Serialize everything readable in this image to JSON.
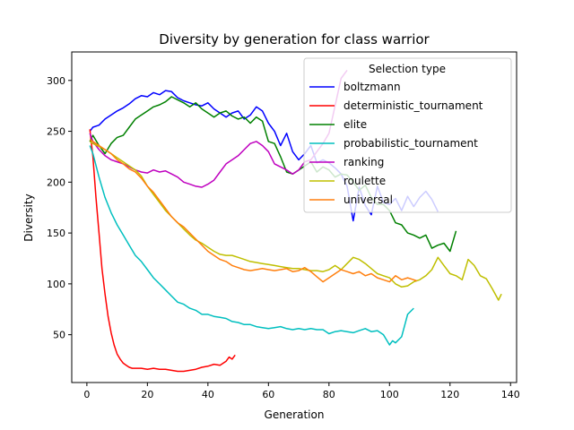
{
  "chart_data": {
    "type": "line",
    "title": "Diversity by generation for class warrior",
    "xlabel": "Generation",
    "ylabel": "Diversity",
    "xlim": [
      -5,
      142
    ],
    "ylim": [
      3,
      328
    ],
    "xticks": [
      0,
      20,
      40,
      60,
      80,
      100,
      120,
      140
    ],
    "yticks": [
      50,
      100,
      150,
      200,
      250,
      300
    ],
    "grid": false,
    "legend": {
      "title": "Selection type",
      "placement": "top-right"
    },
    "series": [
      {
        "name": "boltzmann",
        "color": "#0000ff",
        "x": [
          1,
          2,
          4,
          6,
          8,
          10,
          12,
          14,
          16,
          18,
          20,
          22,
          24,
          26,
          28,
          30,
          32,
          34,
          36,
          38,
          40,
          42,
          44,
          46,
          48,
          50,
          52,
          54,
          56,
          58,
          60,
          62,
          64,
          66,
          68,
          70,
          72,
          74,
          76,
          78,
          80,
          82,
          84,
          86,
          88,
          90,
          92,
          94,
          96,
          98,
          100,
          102,
          104,
          106,
          108,
          110,
          112,
          114,
          116
        ],
        "values": [
          250,
          254,
          256,
          262,
          266,
          270,
          273,
          277,
          282,
          285,
          284,
          288,
          286,
          290,
          289,
          283,
          280,
          278,
          276,
          275,
          278,
          272,
          268,
          264,
          268,
          270,
          262,
          266,
          274,
          270,
          258,
          250,
          236,
          248,
          230,
          222,
          228,
          236,
          219,
          222,
          219,
          214,
          208,
          196,
          162,
          195,
          177,
          168,
          196,
          180,
          178,
          184,
          172,
          186,
          176,
          185,
          191,
          183,
          171
        ]
      },
      {
        "name": "deterministic_tournament",
        "color": "#ff0000",
        "x": [
          1,
          2,
          3,
          4,
          5,
          6,
          7,
          8,
          9,
          10,
          11,
          12,
          13,
          14,
          15,
          16,
          18,
          20,
          22,
          24,
          26,
          28,
          30,
          32,
          34,
          36,
          38,
          40,
          42,
          44,
          46,
          47,
          48,
          49
        ],
        "values": [
          252,
          225,
          185,
          150,
          115,
          90,
          68,
          52,
          40,
          31,
          26,
          22,
          20,
          18,
          17,
          17,
          17,
          16,
          17,
          16,
          16,
          15,
          14,
          14,
          15,
          16,
          18,
          19,
          21,
          20,
          24,
          28,
          26,
          30
        ]
      },
      {
        "name": "elite",
        "color": "#008000",
        "x": [
          1,
          2,
          4,
          6,
          8,
          10,
          12,
          14,
          16,
          18,
          20,
          22,
          24,
          26,
          28,
          30,
          32,
          34,
          36,
          38,
          40,
          42,
          44,
          46,
          48,
          50,
          52,
          54,
          56,
          58,
          60,
          62,
          64,
          66,
          68,
          70,
          72,
          74,
          76,
          78,
          80,
          82,
          84,
          86,
          88,
          90,
          92,
          94,
          96,
          98,
          100,
          102,
          104,
          106,
          108,
          110,
          112,
          114,
          116,
          118,
          120,
          122
        ],
        "values": [
          240,
          246,
          236,
          228,
          238,
          244,
          246,
          254,
          262,
          266,
          270,
          274,
          276,
          279,
          284,
          281,
          278,
          274,
          278,
          272,
          268,
          264,
          268,
          270,
          265,
          262,
          264,
          258,
          264,
          260,
          240,
          238,
          225,
          210,
          208,
          212,
          216,
          220,
          210,
          215,
          212,
          205,
          208,
          207,
          200,
          192,
          197,
          185,
          178,
          178,
          172,
          160,
          158,
          150,
          148,
          145,
          148,
          135,
          138,
          140,
          132,
          152
        ]
      },
      {
        "name": "probabilistic_tournament",
        "color": "#00bfbf",
        "x": [
          1,
          2,
          4,
          6,
          8,
          10,
          12,
          14,
          16,
          18,
          20,
          22,
          24,
          26,
          28,
          30,
          32,
          34,
          36,
          38,
          40,
          42,
          44,
          46,
          48,
          50,
          52,
          54,
          56,
          58,
          60,
          62,
          64,
          66,
          68,
          70,
          72,
          74,
          76,
          78,
          80,
          82,
          84,
          86,
          88,
          90,
          92,
          94,
          96,
          98,
          100,
          101,
          102,
          104,
          106,
          108
        ],
        "values": [
          236,
          228,
          205,
          185,
          170,
          158,
          148,
          138,
          128,
          122,
          114,
          106,
          100,
          94,
          88,
          82,
          80,
          76,
          74,
          70,
          70,
          68,
          67,
          66,
          63,
          62,
          60,
          60,
          58,
          57,
          56,
          57,
          58,
          56,
          55,
          56,
          55,
          56,
          55,
          55,
          51,
          53,
          54,
          53,
          52,
          54,
          56,
          53,
          54,
          50,
          40,
          44,
          42,
          48,
          70,
          76
        ]
      },
      {
        "name": "ranking",
        "color": "#bf00bf",
        "x": [
          1,
          2,
          4,
          6,
          8,
          10,
          12,
          14,
          16,
          18,
          20,
          22,
          24,
          26,
          28,
          30,
          32,
          34,
          36,
          38,
          40,
          42,
          44,
          46,
          48,
          50,
          52,
          54,
          56,
          58,
          60,
          62,
          64,
          66,
          68,
          70,
          72,
          74,
          76,
          78,
          80,
          82,
          84,
          86
        ],
        "values": [
          248,
          240,
          232,
          226,
          222,
          220,
          218,
          215,
          212,
          210,
          209,
          212,
          210,
          211,
          208,
          205,
          200,
          198,
          196,
          195,
          198,
          202,
          210,
          218,
          222,
          226,
          232,
          238,
          240,
          236,
          230,
          218,
          215,
          212,
          208,
          212,
          220,
          222,
          230,
          238,
          248,
          275,
          302,
          310
        ]
      },
      {
        "name": "roulette",
        "color": "#bfbf00",
        "x": [
          1,
          2,
          4,
          6,
          8,
          10,
          12,
          14,
          16,
          18,
          20,
          22,
          24,
          26,
          28,
          30,
          32,
          34,
          36,
          38,
          40,
          42,
          44,
          46,
          48,
          50,
          52,
          54,
          56,
          58,
          60,
          62,
          64,
          66,
          68,
          70,
          72,
          74,
          76,
          78,
          80,
          82,
          84,
          86,
          88,
          90,
          92,
          94,
          96,
          98,
          100,
          102,
          104,
          106,
          108,
          110,
          112,
          114,
          116,
          118,
          120,
          122,
          124,
          126,
          128,
          130,
          132,
          134,
          136,
          137
        ],
        "values": [
          240,
          238,
          235,
          232,
          228,
          224,
          220,
          216,
          212,
          206,
          196,
          188,
          180,
          172,
          166,
          160,
          154,
          148,
          143,
          140,
          136,
          132,
          129,
          128,
          128,
          126,
          124,
          122,
          121,
          120,
          119,
          118,
          117,
          116,
          115,
          115,
          114,
          113,
          113,
          112,
          114,
          118,
          114,
          120,
          126,
          124,
          120,
          115,
          110,
          108,
          106,
          100,
          97,
          98,
          102,
          104,
          108,
          114,
          126,
          118,
          110,
          108,
          104,
          124,
          118,
          108,
          105,
          95,
          84,
          90
        ]
      },
      {
        "name": "universal",
        "color": "#ff7f0e",
        "x": [
          1,
          2,
          4,
          6,
          8,
          10,
          12,
          14,
          16,
          18,
          20,
          22,
          24,
          26,
          28,
          30,
          32,
          34,
          36,
          38,
          40,
          42,
          44,
          46,
          48,
          50,
          52,
          54,
          56,
          58,
          60,
          62,
          64,
          66,
          68,
          70,
          72,
          74,
          76,
          78,
          80,
          82,
          84,
          86,
          88,
          90,
          92,
          94,
          96,
          98,
          100,
          102,
          104,
          106,
          108,
          109
        ],
        "values": [
          242,
          240,
          236,
          232,
          228,
          222,
          218,
          213,
          210,
          204,
          196,
          190,
          182,
          174,
          166,
          160,
          156,
          150,
          144,
          138,
          132,
          128,
          124,
          122,
          118,
          116,
          114,
          113,
          114,
          115,
          114,
          113,
          114,
          115,
          112,
          113,
          116,
          112,
          107,
          102,
          106,
          110,
          114,
          112,
          110,
          112,
          108,
          110,
          106,
          104,
          102,
          108,
          104,
          106,
          104,
          103
        ]
      }
    ]
  }
}
